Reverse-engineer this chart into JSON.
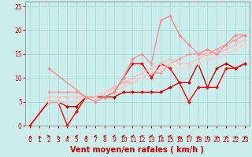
{
  "xlabel": "Vent moyen/en rafales ( km/h )",
  "xlim": [
    -0.5,
    23.5
  ],
  "ylim": [
    0,
    26
  ],
  "xticks": [
    0,
    1,
    2,
    3,
    4,
    5,
    6,
    7,
    8,
    9,
    10,
    11,
    12,
    13,
    14,
    15,
    16,
    17,
    18,
    19,
    20,
    21,
    22,
    23
  ],
  "yticks": [
    0,
    5,
    10,
    15,
    20,
    25
  ],
  "background_color": "#cbeeed",
  "grid_color": "#aaddda",
  "series": [
    {
      "x": [
        0,
        2,
        3,
        4,
        5,
        6,
        7,
        8,
        9,
        10,
        11,
        12,
        13,
        14,
        15,
        16,
        17,
        18,
        19,
        20,
        21,
        22,
        23
      ],
      "y": [
        0,
        5,
        5,
        4,
        4,
        6,
        6,
        6,
        6,
        7,
        7,
        7,
        7,
        7,
        8,
        9,
        9,
        13,
        8,
        12,
        13,
        12,
        13
      ],
      "color": "#cc0000",
      "lw": 1.0,
      "marker": "D",
      "ms": 2.0
    },
    {
      "x": [
        0,
        2,
        3,
        4,
        5,
        6,
        7,
        8,
        9,
        10,
        11,
        12,
        13,
        14,
        15,
        16,
        17,
        18,
        19,
        20,
        21,
        22,
        23
      ],
      "y": [
        0,
        5,
        5,
        0,
        3,
        6,
        6,
        6,
        7,
        10,
        13,
        13,
        10,
        13,
        12,
        9,
        5,
        8,
        8,
        8,
        12,
        12,
        13
      ],
      "color": "#ff0000",
      "lw": 1.0,
      "marker": "D",
      "ms": 2.0
    },
    {
      "x": [
        2,
        3,
        4,
        5,
        6,
        7,
        8,
        9,
        10,
        11,
        12,
        13,
        14,
        15,
        16,
        17,
        18,
        19,
        20,
        21,
        22,
        23
      ],
      "y": [
        7,
        7,
        7,
        7,
        6,
        6,
        7,
        8,
        9,
        9,
        10,
        11,
        11,
        13,
        14,
        15,
        15,
        15,
        16,
        17,
        18,
        19
      ],
      "color": "#ff9999",
      "lw": 1.0,
      "marker": "D",
      "ms": 2.0
    },
    {
      "x": [
        2,
        3,
        4,
        5,
        6,
        7,
        8,
        9,
        10,
        11,
        12,
        13,
        14,
        15,
        16,
        17,
        18,
        19,
        20,
        21,
        22,
        23
      ],
      "y": [
        6,
        6,
        6,
        6,
        6,
        6,
        7,
        8,
        9,
        10,
        11,
        12,
        13,
        14,
        13,
        13,
        14,
        15,
        15,
        16,
        17,
        18
      ],
      "color": "#ffbbbb",
      "lw": 1.0,
      "marker": "D",
      "ms": 2.0
    },
    {
      "x": [
        2,
        3,
        4,
        5,
        6,
        7,
        8,
        9,
        10,
        11,
        12,
        13,
        14,
        15,
        16,
        17,
        18,
        19,
        20,
        21,
        22,
        23
      ],
      "y": [
        5,
        5,
        5,
        5,
        6,
        6,
        7,
        7,
        8,
        9,
        10,
        11,
        12,
        13,
        12,
        12,
        13,
        14,
        14,
        15,
        16,
        17
      ],
      "color": "#ffcccc",
      "lw": 1.0,
      "marker": "D",
      "ms": 2.0
    },
    {
      "x": [
        2,
        6,
        7,
        8,
        9,
        10,
        11,
        12,
        13,
        14,
        15,
        16,
        17,
        18,
        19,
        20,
        21,
        22,
        23
      ],
      "y": [
        12,
        6,
        5,
        6,
        7,
        10,
        14,
        15,
        13,
        22,
        23,
        19,
        17,
        15,
        16,
        15,
        17,
        19,
        19
      ],
      "color": "#ff8888",
      "lw": 1.0,
      "marker": "D",
      "ms": 2.0
    }
  ],
  "arrow_angles_deg": [
    225,
    225,
    90,
    225,
    225,
    270,
    225,
    270,
    270,
    270,
    270,
    270,
    270,
    270,
    270,
    270,
    225,
    270,
    225,
    225,
    225,
    225,
    225,
    225
  ],
  "arrow_color": "#cc0000",
  "xlabel_color": "#cc0000",
  "xlabel_fontsize": 7,
  "tick_fontsize": 5.5,
  "tick_color": "#cc0000"
}
